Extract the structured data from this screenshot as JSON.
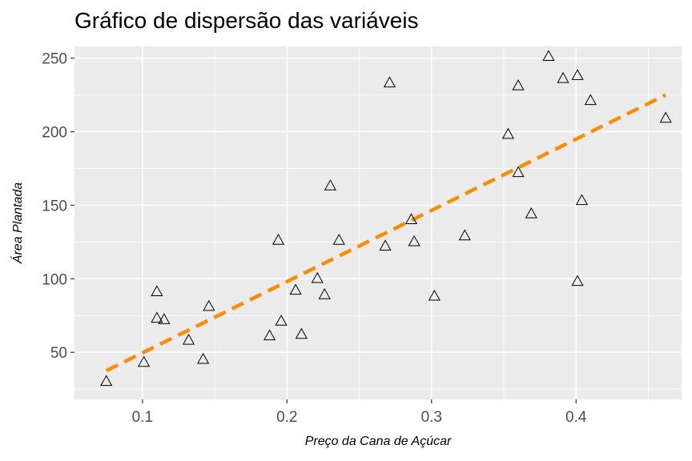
{
  "chart_data": {
    "type": "scatter",
    "title": "Gráfico de dispersão das variáveis",
    "xlabel": "Preço da Cana de Açúcar",
    "ylabel": "Área Plantada",
    "xlim": [
      0.053,
      0.473
    ],
    "ylim": [
      18,
      258
    ],
    "x_ticks": [
      0.1,
      0.2,
      0.3,
      0.4
    ],
    "x_tick_labels": [
      "0.1",
      "0.2",
      "0.3",
      "0.4"
    ],
    "y_ticks": [
      50,
      100,
      150,
      200,
      250
    ],
    "y_tick_labels": [
      "50",
      "100",
      "150",
      "200",
      "250"
    ],
    "grid": true,
    "marker": "open-triangle",
    "colors": {
      "panel": "#ebebeb",
      "grid": "#ffffff",
      "points": "#000000",
      "trend": "#ff8c00"
    },
    "series": [
      {
        "points": [
          [
            0.075,
            30
          ],
          [
            0.101,
            43
          ],
          [
            0.11,
            91
          ],
          [
            0.11,
            73
          ],
          [
            0.115,
            72
          ],
          [
            0.132,
            58
          ],
          [
            0.142,
            45
          ],
          [
            0.146,
            81
          ],
          [
            0.188,
            61
          ],
          [
            0.194,
            126
          ],
          [
            0.196,
            71
          ],
          [
            0.206,
            92
          ],
          [
            0.21,
            62
          ],
          [
            0.221,
            100
          ],
          [
            0.226,
            89
          ],
          [
            0.23,
            163
          ],
          [
            0.236,
            126
          ],
          [
            0.268,
            122
          ],
          [
            0.271,
            233
          ],
          [
            0.286,
            140
          ],
          [
            0.288,
            125
          ],
          [
            0.302,
            88
          ],
          [
            0.323,
            129
          ],
          [
            0.353,
            198
          ],
          [
            0.36,
            231
          ],
          [
            0.36,
            172
          ],
          [
            0.369,
            144
          ],
          [
            0.381,
            251
          ],
          [
            0.391,
            236
          ],
          [
            0.401,
            238
          ],
          [
            0.401,
            98
          ],
          [
            0.404,
            153
          ],
          [
            0.41,
            221
          ],
          [
            0.462,
            209
          ]
        ]
      }
    ],
    "trend_line": {
      "style": "dashed",
      "x": [
        0.075,
        0.462
      ],
      "y": [
        37.5,
        225
      ]
    }
  }
}
